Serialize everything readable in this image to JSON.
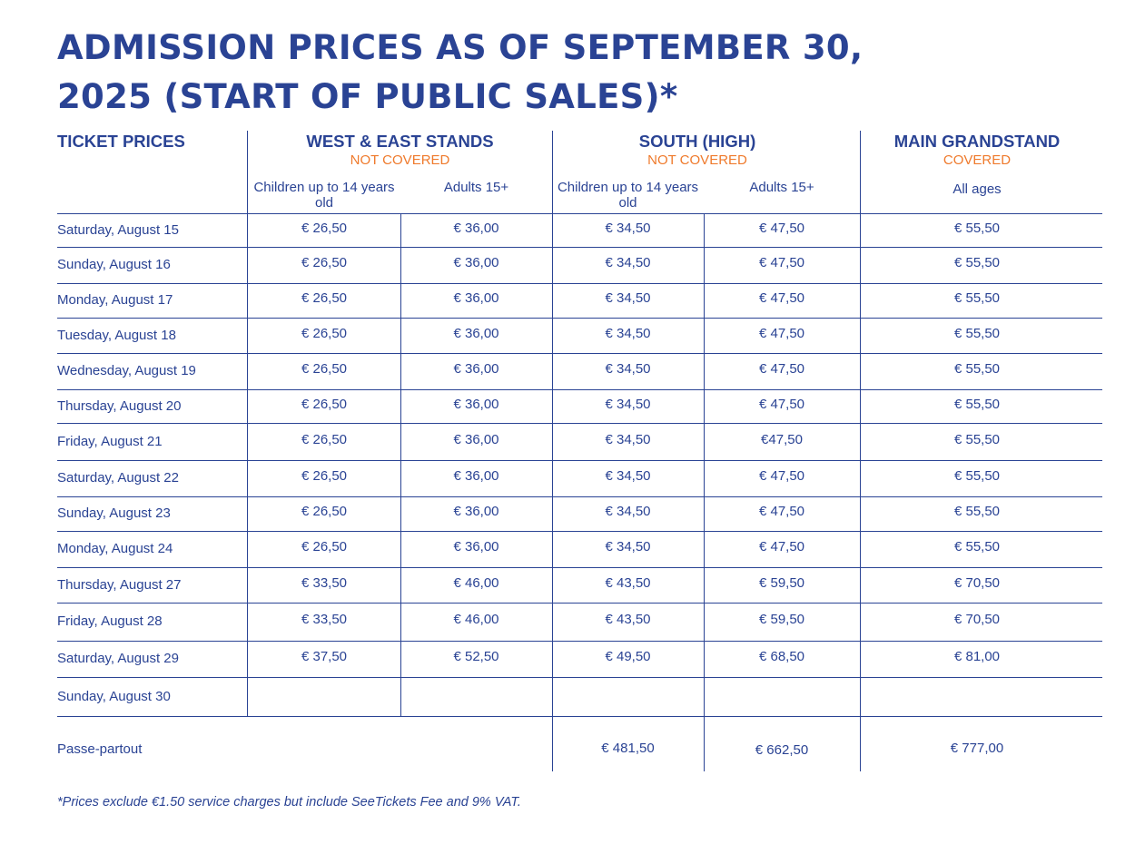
{
  "title_lines": [
    "ADMISSION PRICES AS OF SEPTEMBER 30,",
    "2025 (START OF PUBLIC SALES)*"
  ],
  "colors": {
    "primary": "#2a4394",
    "accent": "#ef7a2c"
  },
  "table": {
    "row_header_label": "TICKET PRICES",
    "groups": [
      {
        "name": "WEST & EAST STANDS",
        "coverage": "NOT COVERED",
        "columns": [
          "Children up to 14 years old",
          "Adults 15+"
        ]
      },
      {
        "name": "SOUTH (HIGH)",
        "coverage": "NOT COVERED",
        "columns": [
          "Children up to 14 years old",
          "Adults 15+"
        ]
      },
      {
        "name": "MAIN GRANDSTAND",
        "coverage": "COVERED",
        "columns": [
          "All ages"
        ]
      }
    ],
    "rows": [
      {
        "date": "Saturday, August 15",
        "prices": [
          "€ 26,50",
          "€ 36,00",
          "€ 34,50",
          "€ 47,50",
          "€ 55,50"
        ]
      },
      {
        "date": "Sunday, August 16",
        "prices": [
          "€ 26,50",
          "€ 36,00",
          "€ 34,50",
          "€ 47,50",
          "€ 55,50"
        ]
      },
      {
        "date": "Monday, August 17",
        "prices": [
          "€ 26,50",
          "€ 36,00",
          "€ 34,50",
          "€ 47,50",
          "€ 55,50"
        ]
      },
      {
        "date": "Tuesday, August 18",
        "prices": [
          "€ 26,50",
          "€ 36,00",
          "€ 34,50",
          "€ 47,50",
          "€ 55,50"
        ]
      },
      {
        "date": "Wednesday, August 19",
        "prices": [
          "€ 26,50",
          "€ 36,00",
          "€ 34,50",
          "€ 47,50",
          "€ 55,50"
        ]
      },
      {
        "date": "Thursday, August 20",
        "prices": [
          "€ 26,50",
          "€ 36,00",
          "€ 34,50",
          "€ 47,50",
          "€ 55,50"
        ]
      },
      {
        "date": "Friday, August 21",
        "prices": [
          "€ 26,50",
          "€ 36,00",
          "€ 34,50",
          "€47,50",
          "€ 55,50"
        ]
      },
      {
        "date": "Saturday, August 22",
        "prices": [
          "€ 26,50",
          "€ 36,00",
          "€ 34,50",
          "€ 47,50",
          "€ 55,50"
        ]
      },
      {
        "date": "Sunday, August 23",
        "prices": [
          "€ 26,50",
          "€ 36,00",
          "€ 34,50",
          "€ 47,50",
          "€ 55,50"
        ]
      },
      {
        "date": "Monday, August 24",
        "prices": [
          "€ 26,50",
          "€ 36,00",
          "€ 34,50",
          "€ 47,50",
          "€ 55,50"
        ]
      },
      {
        "date": "Thursday, August 27",
        "prices": [
          "€ 33,50",
          "€ 46,00",
          "€ 43,50",
          "€ 59,50",
          "€ 70,50"
        ]
      },
      {
        "date": "Friday, August 28",
        "prices": [
          "€ 33,50",
          "€ 46,00",
          "€ 43,50",
          "€ 59,50",
          "€ 70,50"
        ]
      },
      {
        "date": "Saturday, August 29",
        "prices": [
          "€ 37,50",
          "€ 52,50",
          "€ 49,50",
          "€ 68,50",
          "€ 81,00"
        ]
      },
      {
        "date": "Sunday, August 30",
        "prices": [
          "",
          "",
          "",
          "",
          ""
        ]
      }
    ],
    "passe_partout": {
      "label": "Passe-partout",
      "prices": [
        "€ 481,50",
        "€ 662,50",
        "€ 777,00"
      ]
    }
  },
  "footnote": "*Prices exclude €1.50 service charges but include SeeTickets Fee and 9% VAT."
}
